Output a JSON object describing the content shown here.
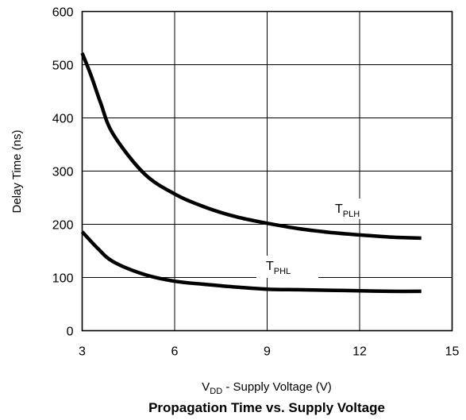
{
  "chart_data": {
    "type": "line",
    "title": "Propagation Time vs. Supply Voltage",
    "xlabel": {
      "main": "V",
      "sub": "DD",
      "rest": " -  Supply Voltage (V)"
    },
    "ylabel": "Delay Time (ns)",
    "xlim": [
      3,
      15
    ],
    "ylim": [
      0,
      600
    ],
    "xticks": [
      3,
      6,
      9,
      12,
      15
    ],
    "yticks": [
      0,
      100,
      200,
      300,
      400,
      500,
      600
    ],
    "grid": true,
    "series": [
      {
        "name": {
          "main": "T",
          "sub": "PLH"
        },
        "x": [
          3,
          3.3,
          3.6,
          4,
          5,
          6,
          7,
          8,
          9,
          10,
          11,
          12,
          13,
          14
        ],
        "y": [
          522,
          478,
          428,
          370,
          296,
          257,
          232,
          214,
          202,
          192,
          185,
          180,
          176,
          174
        ]
      },
      {
        "name": {
          "main": "T",
          "sub": "PHL"
        },
        "x": [
          3,
          3.5,
          4,
          5,
          6,
          7,
          8,
          9,
          10,
          11,
          12,
          13,
          14
        ],
        "y": [
          186,
          155,
          130,
          106,
          93,
          87,
          82,
          78,
          77,
          76,
          75,
          74,
          74
        ]
      }
    ]
  }
}
